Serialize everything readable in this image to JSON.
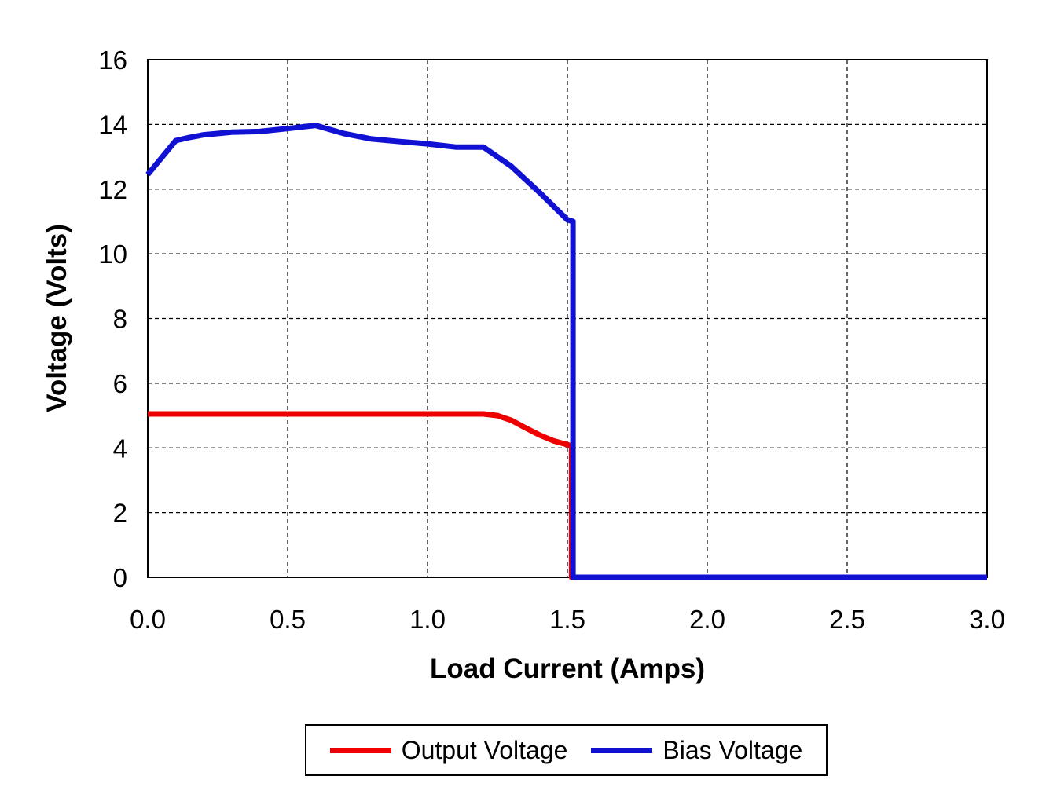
{
  "chart_data": {
    "type": "line",
    "title": "",
    "xlabel": "Load Current (Amps)",
    "ylabel": "Voltage (Volts)",
    "xlim": [
      0.0,
      3.0
    ],
    "ylim": [
      0,
      16
    ],
    "x_ticks": [
      0.0,
      0.5,
      1.0,
      1.5,
      2.0,
      2.5,
      3.0
    ],
    "x_tick_labels": [
      "0.0",
      "0.5",
      "1.0",
      "1.5",
      "2.0",
      "2.5",
      "3.0"
    ],
    "y_ticks": [
      0,
      2,
      4,
      6,
      8,
      10,
      12,
      14,
      16
    ],
    "y_tick_labels": [
      "0",
      "2",
      "4",
      "6",
      "8",
      "10",
      "12",
      "14",
      "16"
    ],
    "grid": {
      "visible": true,
      "style": "dashed",
      "color": "#000000"
    },
    "plot_border": true,
    "legend": {
      "position": "bottom-center",
      "boxed": true
    },
    "series": [
      {
        "name": "Output Voltage",
        "color": "#ee0000",
        "points": [
          [
            0.0,
            5.05
          ],
          [
            0.2,
            5.05
          ],
          [
            0.4,
            5.05
          ],
          [
            0.6,
            5.05
          ],
          [
            0.8,
            5.05
          ],
          [
            1.0,
            5.05
          ],
          [
            1.2,
            5.05
          ],
          [
            1.25,
            5.0
          ],
          [
            1.3,
            4.85
          ],
          [
            1.35,
            4.62
          ],
          [
            1.4,
            4.4
          ],
          [
            1.45,
            4.22
          ],
          [
            1.5,
            4.1
          ],
          [
            1.515,
            4.05
          ],
          [
            1.515,
            0.0
          ],
          [
            3.0,
            0.0
          ]
        ]
      },
      {
        "name": "Bias Voltage",
        "color": "#1111d4",
        "points": [
          [
            0.0,
            12.45
          ],
          [
            0.1,
            13.5
          ],
          [
            0.15,
            13.6
          ],
          [
            0.2,
            13.68
          ],
          [
            0.3,
            13.76
          ],
          [
            0.4,
            13.78
          ],
          [
            0.5,
            13.87
          ],
          [
            0.6,
            13.97
          ],
          [
            0.7,
            13.72
          ],
          [
            0.8,
            13.55
          ],
          [
            0.9,
            13.47
          ],
          [
            1.0,
            13.4
          ],
          [
            1.1,
            13.3
          ],
          [
            1.2,
            13.3
          ],
          [
            1.3,
            12.7
          ],
          [
            1.4,
            11.9
          ],
          [
            1.5,
            11.05
          ],
          [
            1.52,
            11.0
          ],
          [
            1.52,
            0.0
          ],
          [
            3.0,
            0.0
          ]
        ]
      }
    ]
  }
}
